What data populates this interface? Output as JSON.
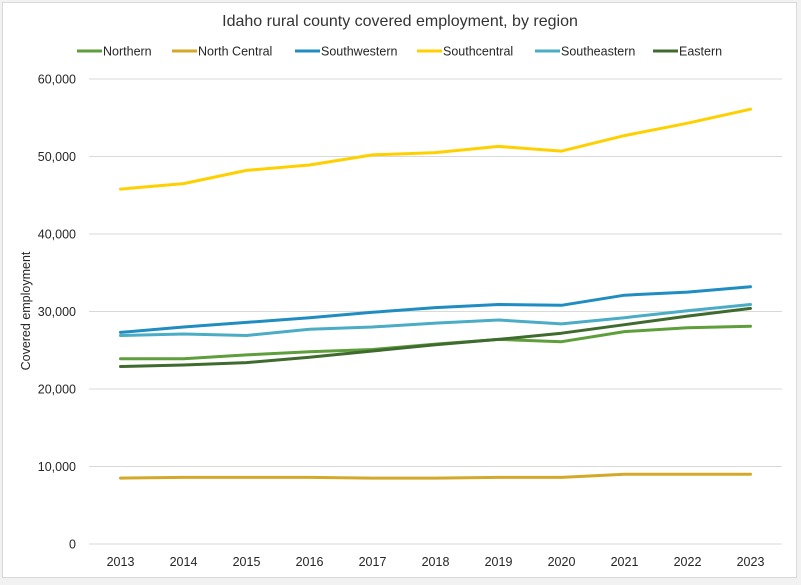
{
  "chart_data": {
    "type": "line",
    "title": "Idaho rural county covered employment, by region",
    "xlabel": "",
    "ylabel": "Covered employment",
    "ylim": [
      0,
      60000
    ],
    "yticks": [
      0,
      10000,
      20000,
      30000,
      40000,
      50000,
      60000
    ],
    "ytick_labels": [
      "0",
      "10,000",
      "20,000",
      "30,000",
      "40,000",
      "50,000",
      "60,000"
    ],
    "grid": true,
    "legend_position": "top",
    "categories": [
      "2013",
      "2014",
      "2015",
      "2016",
      "2017",
      "2018",
      "2019",
      "2020",
      "2021",
      "2022",
      "2023"
    ],
    "series": [
      {
        "name": "Northern",
        "color": "#5E9E3B",
        "values": [
          23900,
          23900,
          24400,
          24800,
          25100,
          25800,
          26400,
          26100,
          27400,
          27900,
          28100
        ]
      },
      {
        "name": "North Central",
        "color": "#D4A92A",
        "values": [
          8500,
          8600,
          8600,
          8600,
          8500,
          8500,
          8600,
          8600,
          9000,
          9000,
          9000
        ]
      },
      {
        "name": "Southwestern",
        "color": "#1F8DC1",
        "values": [
          27300,
          28000,
          28600,
          29200,
          29900,
          30500,
          30900,
          30800,
          32100,
          32500,
          33200
        ]
      },
      {
        "name": "Southcentral",
        "color": "#FFD000",
        "values": [
          45800,
          46500,
          48200,
          48900,
          50200,
          50500,
          51300,
          50700,
          52700,
          54300,
          56100
        ]
      },
      {
        "name": "Southeastern",
        "color": "#4BACC6",
        "values": [
          26900,
          27100,
          26900,
          27700,
          28000,
          28500,
          28900,
          28400,
          29200,
          30100,
          30900
        ]
      },
      {
        "name": "Eastern",
        "color": "#3F6B2E",
        "values": [
          22900,
          23100,
          23400,
          24100,
          24900,
          25700,
          26400,
          27200,
          28300,
          29400,
          30400
        ]
      }
    ]
  }
}
